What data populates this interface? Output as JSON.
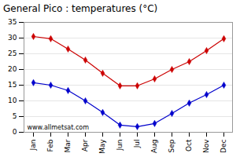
{
  "chart_data": {
    "type": "line",
    "title": "General Pico : temperatures (°C)",
    "categories": [
      "Jan",
      "Feb",
      "Mar",
      "Apr",
      "May",
      "Jun",
      "Jul",
      "Aug",
      "Sep",
      "Oct",
      "Nov",
      "Dec"
    ],
    "series": [
      {
        "color": "#cc0000",
        "marker": "diamond",
        "values": [
          30.5,
          29.8,
          26.5,
          23.0,
          18.8,
          14.8,
          14.8,
          17.0,
          20.0,
          22.5,
          26.0,
          29.8
        ]
      },
      {
        "color": "#0000cc",
        "marker": "diamond",
        "values": [
          15.8,
          15.0,
          13.3,
          10.0,
          6.3,
          2.3,
          1.8,
          2.8,
          6.0,
          9.3,
          12.0,
          15.0
        ]
      }
    ],
    "ylim": [
      0,
      35
    ],
    "yticks": [
      0,
      5,
      10,
      15,
      20,
      25,
      30,
      35
    ],
    "grid": true,
    "annotations": [
      {
        "text": "www.allmetsat.com"
      }
    ]
  }
}
